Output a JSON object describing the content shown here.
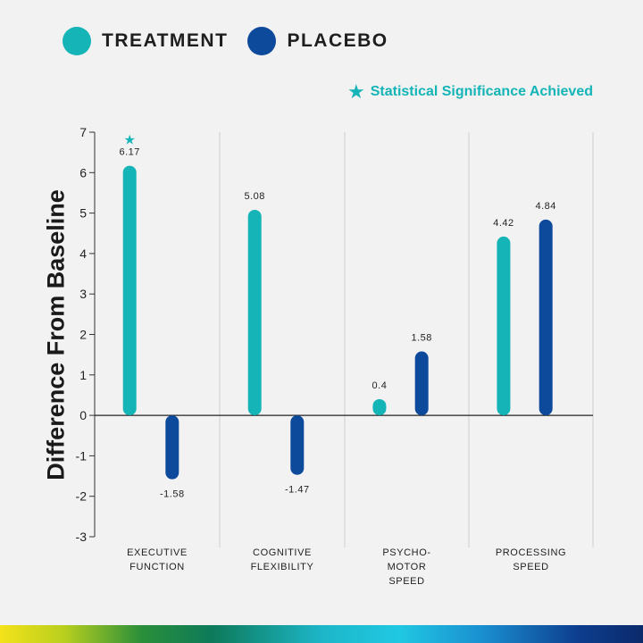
{
  "legend": {
    "treatment": {
      "label": "TREATMENT",
      "color": "#14b4b7"
    },
    "placebo": {
      "label": "PLACEBO",
      "color": "#0e4a9c"
    }
  },
  "significance_note": {
    "symbol": "★",
    "label": "Statistical Significance Achieved",
    "color": "#14b4b7"
  },
  "chart_data": {
    "type": "bar",
    "ylabel": "Difference From Baseline",
    "ylim": [
      -3,
      7
    ],
    "yticks": [
      -3,
      -2,
      -1,
      0,
      1,
      2,
      3,
      4,
      5,
      6,
      7
    ],
    "categories": [
      [
        "EXECUTIVE",
        "FUNCTION"
      ],
      [
        "COGNITIVE",
        "FLEXIBILITY"
      ],
      [
        "PSYCHO-",
        "MOTOR",
        "SPEED"
      ],
      [
        "PROCESSING",
        "SPEED"
      ]
    ],
    "series": [
      {
        "name": "TREATMENT",
        "values": [
          6.17,
          5.08,
          0.4,
          4.42
        ],
        "color": "#14b4b7"
      },
      {
        "name": "PLACEBO",
        "values": [
          -1.58,
          -1.47,
          1.58,
          4.84
        ],
        "color": "#0e4a9c"
      }
    ],
    "significant": [
      {
        "category": 0,
        "series": 0
      }
    ],
    "grid": "vertical separators between categories"
  }
}
